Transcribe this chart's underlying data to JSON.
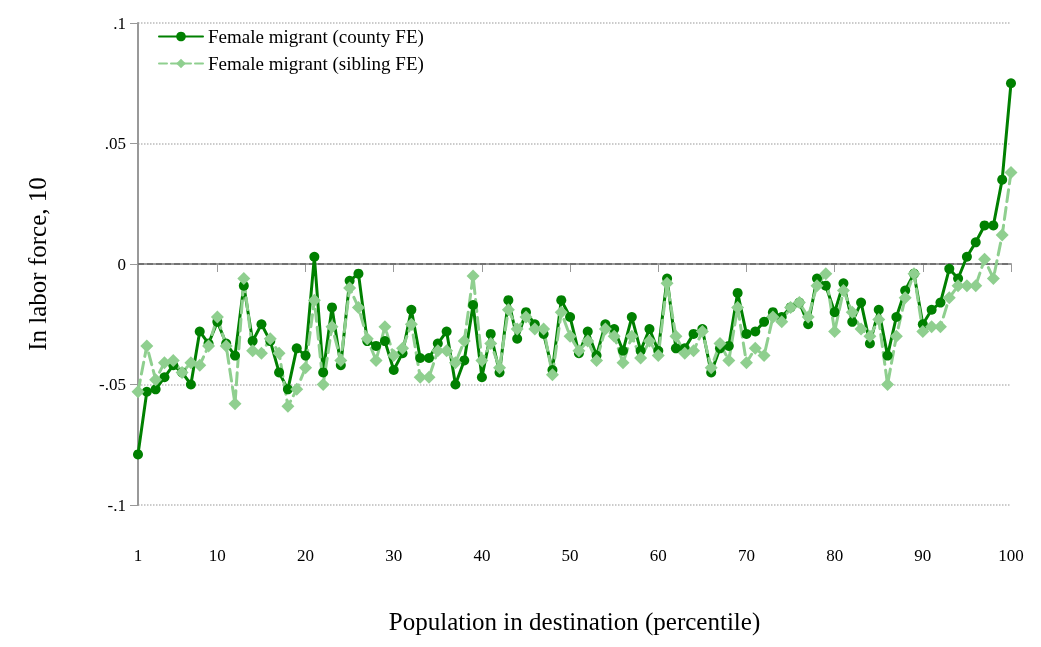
{
  "chart_data": {
    "type": "line",
    "xlabel": "Population in destination (percentile)",
    "ylabel": "In labor force, 10",
    "xlim": [
      1,
      100
    ],
    "xticks": [
      1,
      10,
      20,
      30,
      40,
      50,
      60,
      70,
      80,
      90,
      100
    ],
    "ylim": [
      -0.1,
      0.1
    ],
    "yticks": [
      {
        "value": -0.1,
        "label": "-.1"
      },
      {
        "value": -0.05,
        "label": "-.05"
      },
      {
        "value": 0,
        "label": "0"
      },
      {
        "value": 0.05,
        "label": ".05"
      },
      {
        "value": 0.1,
        "label": ".1"
      }
    ],
    "grid": "y",
    "legend": "top left",
    "ref_lines": [
      {
        "axis": "y",
        "value": 0,
        "color": "#666666",
        "line_style": "dashed"
      }
    ],
    "series": [
      {
        "name": "Female migrant (county FE)",
        "color": "#008000",
        "marker": "circle",
        "line_style": "solid",
        "x": [
          1,
          2,
          3,
          4,
          5,
          6,
          7,
          8,
          9,
          10,
          11,
          12,
          13,
          14,
          15,
          16,
          17,
          18,
          19,
          20,
          21,
          22,
          23,
          24,
          25,
          26,
          27,
          28,
          29,
          30,
          31,
          32,
          33,
          34,
          35,
          36,
          37,
          38,
          39,
          40,
          41,
          42,
          43,
          44,
          45,
          46,
          47,
          48,
          49,
          50,
          51,
          52,
          53,
          54,
          55,
          56,
          57,
          58,
          59,
          60,
          61,
          62,
          63,
          64,
          65,
          66,
          67,
          68,
          69,
          70,
          71,
          72,
          73,
          74,
          75,
          76,
          77,
          78,
          79,
          80,
          81,
          82,
          83,
          84,
          85,
          86,
          87,
          88,
          89,
          90,
          91,
          92,
          93,
          94,
          95,
          96,
          97,
          98,
          99,
          100
        ],
        "values": [
          -0.079,
          -0.053,
          -0.052,
          -0.047,
          -0.042,
          -0.045,
          -0.05,
          -0.028,
          -0.033,
          -0.024,
          -0.033,
          -0.038,
          -0.009,
          -0.032,
          -0.025,
          -0.032,
          -0.045,
          -0.052,
          -0.035,
          -0.038,
          0.003,
          -0.045,
          -0.018,
          -0.042,
          -0.007,
          -0.004,
          -0.032,
          -0.034,
          -0.032,
          -0.044,
          -0.037,
          -0.019,
          -0.039,
          -0.039,
          -0.033,
          -0.028,
          -0.05,
          -0.04,
          -0.017,
          -0.047,
          -0.029,
          -0.045,
          -0.015,
          -0.031,
          -0.02,
          -0.025,
          -0.029,
          -0.044,
          -0.015,
          -0.022,
          -0.037,
          -0.028,
          -0.038,
          -0.025,
          -0.027,
          -0.036,
          -0.022,
          -0.036,
          -0.027,
          -0.036,
          -0.006,
          -0.035,
          -0.035,
          -0.029,
          -0.027,
          -0.045,
          -0.035,
          -0.034,
          -0.012,
          -0.029,
          -0.028,
          -0.024,
          -0.02,
          -0.022,
          -0.018,
          -0.016,
          -0.025,
          -0.006,
          -0.009,
          -0.02,
          -0.008,
          -0.024,
          -0.016,
          -0.033,
          -0.019,
          -0.038,
          -0.022,
          -0.011,
          -0.004,
          -0.025,
          -0.019,
          -0.016,
          -0.002,
          -0.006,
          0.003,
          0.009,
          0.016,
          0.016,
          0.035,
          0.075
        ]
      },
      {
        "name": "Female migrant (sibling FE)",
        "color": "#8fcf8f",
        "marker": "diamond",
        "line_style": "dashed",
        "x": [
          1,
          2,
          3,
          4,
          5,
          6,
          7,
          8,
          9,
          10,
          11,
          12,
          13,
          14,
          15,
          16,
          17,
          18,
          19,
          20,
          21,
          22,
          23,
          24,
          25,
          26,
          27,
          28,
          29,
          30,
          31,
          32,
          33,
          34,
          35,
          36,
          37,
          38,
          39,
          40,
          41,
          42,
          43,
          44,
          45,
          46,
          47,
          48,
          49,
          50,
          51,
          52,
          53,
          54,
          55,
          56,
          57,
          58,
          59,
          60,
          61,
          62,
          63,
          64,
          65,
          66,
          67,
          68,
          69,
          70,
          71,
          72,
          73,
          74,
          75,
          76,
          77,
          78,
          79,
          80,
          81,
          82,
          83,
          84,
          85,
          86,
          87,
          88,
          89,
          90,
          91,
          92,
          93,
          94,
          95,
          96,
          97,
          98,
          99,
          100
        ],
        "values": [
          -0.053,
          -0.034,
          -0.048,
          -0.041,
          -0.04,
          -0.045,
          -0.041,
          -0.042,
          -0.034,
          -0.022,
          -0.034,
          -0.058,
          -0.006,
          -0.036,
          -0.037,
          -0.031,
          -0.037,
          -0.059,
          -0.052,
          -0.043,
          -0.015,
          -0.05,
          -0.026,
          -0.04,
          -0.01,
          -0.018,
          -0.031,
          -0.04,
          -0.026,
          -0.038,
          -0.035,
          -0.025,
          -0.047,
          -0.047,
          -0.036,
          -0.036,
          -0.041,
          -0.032,
          -0.005,
          -0.04,
          -0.033,
          -0.043,
          -0.019,
          -0.027,
          -0.022,
          -0.027,
          -0.027,
          -0.046,
          -0.02,
          -0.03,
          -0.036,
          -0.032,
          -0.04,
          -0.027,
          -0.03,
          -0.041,
          -0.03,
          -0.039,
          -0.032,
          -0.038,
          -0.008,
          -0.03,
          -0.037,
          -0.036,
          -0.028,
          -0.043,
          -0.033,
          -0.04,
          -0.018,
          -0.041,
          -0.035,
          -0.038,
          -0.022,
          -0.024,
          -0.018,
          -0.016,
          -0.022,
          -0.009,
          -0.004,
          -0.028,
          -0.011,
          -0.02,
          -0.027,
          -0.03,
          -0.023,
          -0.05,
          -0.03,
          -0.014,
          -0.004,
          -0.028,
          -0.026,
          -0.026,
          -0.014,
          -0.009,
          -0.009,
          -0.009,
          0.002,
          -0.006,
          0.012,
          0.038
        ]
      }
    ]
  }
}
